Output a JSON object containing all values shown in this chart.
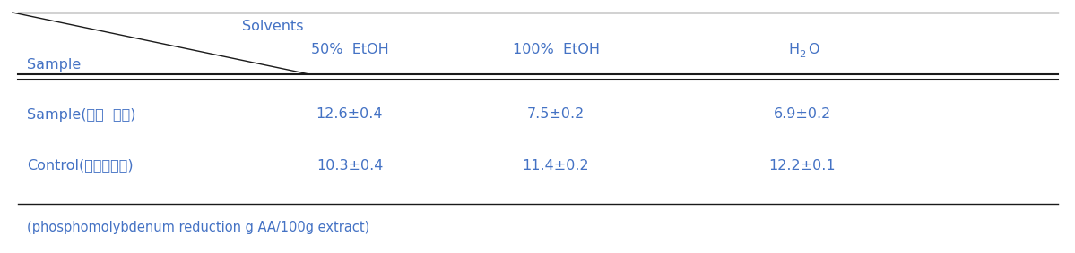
{
  "header_solvents": "Solvents",
  "header_sample": "Sample",
  "col_headers_1": "50%  EtOH",
  "col_headers_2": "100%  EtOH",
  "col_headers_3": "H",
  "col_headers_3b": "2",
  "col_headers_3c": "O",
  "rows": [
    {
      "label": "Sample(더덕  발효)",
      "values": [
        "12.6±0.4",
        "7.5±0.2",
        "6.9±0.2"
      ]
    },
    {
      "label": "Control(더덕비발효)",
      "values": [
        "10.3±0.4",
        "11.4±0.2",
        "12.2±0.1"
      ]
    }
  ],
  "footnote": "(phosphomolybdenum reduction g AA/100g extract)",
  "text_color": "#4472c4",
  "line_color": "#1a1a1a",
  "bg_color": "#ffffff",
  "font_size": 11.5,
  "footnote_font_size": 10.5
}
